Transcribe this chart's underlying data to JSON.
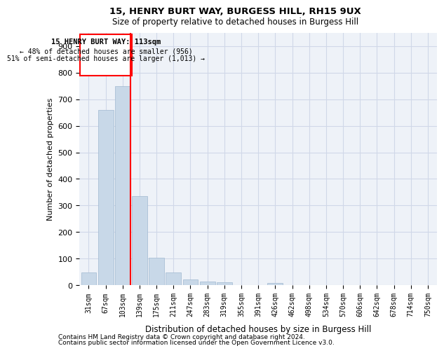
{
  "title1": "15, HENRY BURT WAY, BURGESS HILL, RH15 9UX",
  "title2": "Size of property relative to detached houses in Burgess Hill",
  "xlabel": "Distribution of detached houses by size in Burgess Hill",
  "ylabel": "Number of detached properties",
  "bar_color": "#c8d8e8",
  "bar_edge_color": "#a0b8d0",
  "categories": [
    "31sqm",
    "67sqm",
    "103sqm",
    "139sqm",
    "175sqm",
    "211sqm",
    "247sqm",
    "283sqm",
    "319sqm",
    "355sqm",
    "391sqm",
    "426sqm",
    "462sqm",
    "498sqm",
    "534sqm",
    "570sqm",
    "606sqm",
    "642sqm",
    "678sqm",
    "714sqm",
    "750sqm"
  ],
  "values": [
    47,
    660,
    750,
    335,
    103,
    47,
    22,
    13,
    10,
    0,
    0,
    8,
    0,
    0,
    0,
    0,
    0,
    0,
    0,
    0,
    0
  ],
  "ylim": [
    0,
    950
  ],
  "yticks": [
    0,
    100,
    200,
    300,
    400,
    500,
    600,
    700,
    800,
    900
  ],
  "property_label": "15 HENRY BURT WAY: 113sqm",
  "annotation_line1": "← 48% of detached houses are smaller (956)",
  "annotation_line2": "51% of semi-detached houses are larger (1,013) →",
  "vline_bar_index": 2,
  "footnote1": "Contains HM Land Registry data © Crown copyright and database right 2024.",
  "footnote2": "Contains public sector information licensed under the Open Government Licence v3.0.",
  "grid_color": "#d0d8e8",
  "background_color": "#eef2f8"
}
